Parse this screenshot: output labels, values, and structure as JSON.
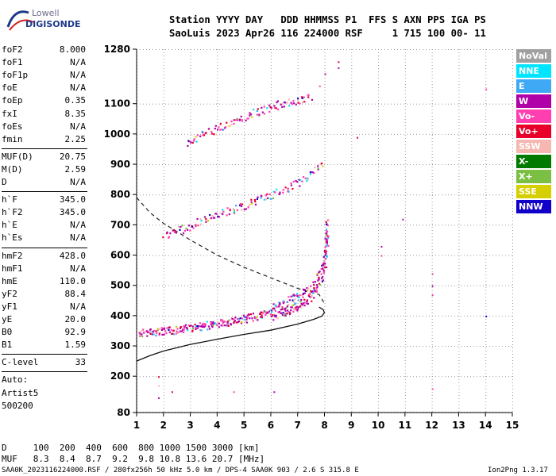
{
  "logo": {
    "line1": "Lowell",
    "line2": "DIGISONDE"
  },
  "header": {
    "row1": "Station YYYY DAY   DDD HHMMSS P1  FFS S AXN PPS IGA PS",
    "row2": "SaoLuis 2023 Apr26 116 224000 RSF     1 715 100 00- 11"
  },
  "params_a": [
    {
      "label": "foF2",
      "value": "8.000"
    },
    {
      "label": "foF1",
      "value": "N/A"
    },
    {
      "label": "foF1p",
      "value": "N/A"
    },
    {
      "label": "foE",
      "value": "N/A"
    },
    {
      "label": "foEp",
      "value": "0.35"
    },
    {
      "label": "fxI",
      "value": "8.35"
    },
    {
      "label": "foEs",
      "value": "N/A"
    },
    {
      "label": "fmin",
      "value": "2.25"
    }
  ],
  "params_b": [
    {
      "label": "MUF(D)",
      "value": "20.75"
    },
    {
      "label": "M(D)",
      "value": "2.59"
    },
    {
      "label": "D",
      "value": "N/A"
    }
  ],
  "params_c": [
    {
      "label": "h`F",
      "value": "345.0"
    },
    {
      "label": "h`F2",
      "value": "345.0"
    },
    {
      "label": "h`E",
      "value": "N/A"
    },
    {
      "label": "h`Es",
      "value": "N/A"
    }
  ],
  "params_d": [
    {
      "label": "hmF2",
      "value": "428.0"
    },
    {
      "label": "hmF1",
      "value": "N/A"
    },
    {
      "label": "hmE",
      "value": "110.0"
    },
    {
      "label": "yF2",
      "value": "88.4"
    },
    {
      "label": "yF1",
      "value": "N/A"
    },
    {
      "label": "yE",
      "value": "20.0"
    },
    {
      "label": "B0",
      "value": "92.9"
    },
    {
      "label": "B1",
      "value": "1.59"
    }
  ],
  "clevel": {
    "label": "C-level",
    "value": "33"
  },
  "auto": {
    "line1": "Auto:",
    "line2": "Artist5",
    "line3": "500200"
  },
  "legend": [
    {
      "name": "NoVal",
      "color": "#a0a0a0"
    },
    {
      "name": "NNE",
      "color": "#00e5ff"
    },
    {
      "name": "E",
      "color": "#3fa9f5"
    },
    {
      "name": "W",
      "color": "#b000a8"
    },
    {
      "name": "Vo-",
      "color": "#ff3fb0"
    },
    {
      "name": "Vo+",
      "color": "#e8002a"
    },
    {
      "name": "SSW",
      "color": "#f4b8b0"
    },
    {
      "name": "X-",
      "color": "#007a00"
    },
    {
      "name": "X+",
      "color": "#7bc043"
    },
    {
      "name": "SSE",
      "color": "#d6cf00"
    },
    {
      "name": "NNW",
      "color": "#1000c8"
    }
  ],
  "muf_table": {
    "d_row": "D     100  200  400  600  800 1000 1500 3000 [km]",
    "muf_row": "MUF   8.3  8.4  8.7  9.2  9.8 10.8 13.6 20.7 [MHz]"
  },
  "footer": {
    "left": "SAA0K_2023116224000.RSF / 280fx256h 50 kHz 5.0 km / DPS-4 SAA0K 903 / 2.6 S 315.8 E",
    "right": "Ion2Png 1.3.17"
  },
  "chart_data": {
    "type": "scatter",
    "xlim": [
      1,
      15
    ],
    "ylim": [
      80,
      1280
    ],
    "x_ticks": [
      "1",
      "2",
      "3",
      "4",
      "5",
      "6",
      "7",
      "8",
      "9",
      "10",
      "11",
      "12",
      "13",
      "14",
      "15"
    ],
    "y_ticks": [
      "80",
      "200",
      "300",
      "400",
      "500",
      "600",
      "700",
      "800",
      "900",
      "1000",
      "1100",
      "1280"
    ],
    "traces": [
      {
        "name": "o-trace",
        "points": [
          [
            1.1,
            345
          ],
          [
            1.5,
            347
          ],
          [
            2,
            350
          ],
          [
            2.5,
            355
          ],
          [
            3,
            362
          ],
          [
            3.5,
            368
          ],
          [
            4,
            374
          ],
          [
            4.5,
            382
          ],
          [
            5,
            392
          ],
          [
            5.5,
            402
          ],
          [
            6,
            412
          ],
          [
            6.5,
            428
          ],
          [
            7,
            450
          ],
          [
            7.5,
            480
          ],
          [
            7.8,
            520
          ],
          [
            8,
            580
          ],
          [
            8.05,
            650
          ],
          [
            8.1,
            700
          ]
        ]
      },
      {
        "name": "second-hop",
        "points": [
          [
            2,
            665
          ],
          [
            2.5,
            680
          ],
          [
            3,
            700
          ],
          [
            4,
            735
          ],
          [
            5,
            765
          ],
          [
            6,
            800
          ],
          [
            6.5,
            815
          ],
          [
            7,
            840
          ],
          [
            7.5,
            870
          ],
          [
            8,
            905
          ]
        ]
      },
      {
        "name": "third-hop",
        "points": [
          [
            2.9,
            975
          ],
          [
            3.5,
            1000
          ],
          [
            4,
            1020
          ],
          [
            4.5,
            1040
          ],
          [
            5,
            1060
          ],
          [
            5.5,
            1075
          ],
          [
            6,
            1090
          ],
          [
            6.5,
            1105
          ],
          [
            7,
            1115
          ],
          [
            7.5,
            1125
          ]
        ]
      }
    ],
    "profile": [
      [
        1,
        250
      ],
      [
        1.5,
        268
      ],
      [
        2,
        283
      ],
      [
        3,
        305
      ],
      [
        4,
        322
      ],
      [
        5,
        338
      ],
      [
        6,
        352
      ],
      [
        7,
        372
      ],
      [
        7.6,
        388
      ],
      [
        7.9,
        398
      ],
      [
        8,
        410
      ],
      [
        7.95,
        420
      ],
      [
        7.8,
        428
      ]
    ],
    "dashed": [
      [
        1,
        790
      ],
      [
        1.5,
        740
      ],
      [
        2,
        705
      ],
      [
        3,
        650
      ],
      [
        4,
        600
      ],
      [
        5,
        560
      ],
      [
        6,
        525
      ],
      [
        7,
        490
      ],
      [
        7.8,
        470
      ],
      [
        8,
        440
      ]
    ],
    "outliers": [
      [
        1.8,
        200
      ],
      [
        1.8,
        170
      ],
      [
        1.8,
        130
      ],
      [
        2.3,
        150
      ],
      [
        4.6,
        150
      ],
      [
        10.1,
        630
      ],
      [
        10.1,
        600
      ],
      [
        10.9,
        720
      ],
      [
        12,
        540
      ],
      [
        12,
        500
      ],
      [
        12,
        470
      ],
      [
        12,
        160
      ],
      [
        14,
        1150
      ],
      [
        14,
        400
      ],
      [
        9.2,
        990
      ],
      [
        7.8,
        1160
      ],
      [
        8.5,
        1240
      ],
      [
        8.5,
        1220
      ],
      [
        8,
        1200
      ],
      [
        6.1,
        150
      ],
      [
        2.9,
        980
      ]
    ]
  }
}
